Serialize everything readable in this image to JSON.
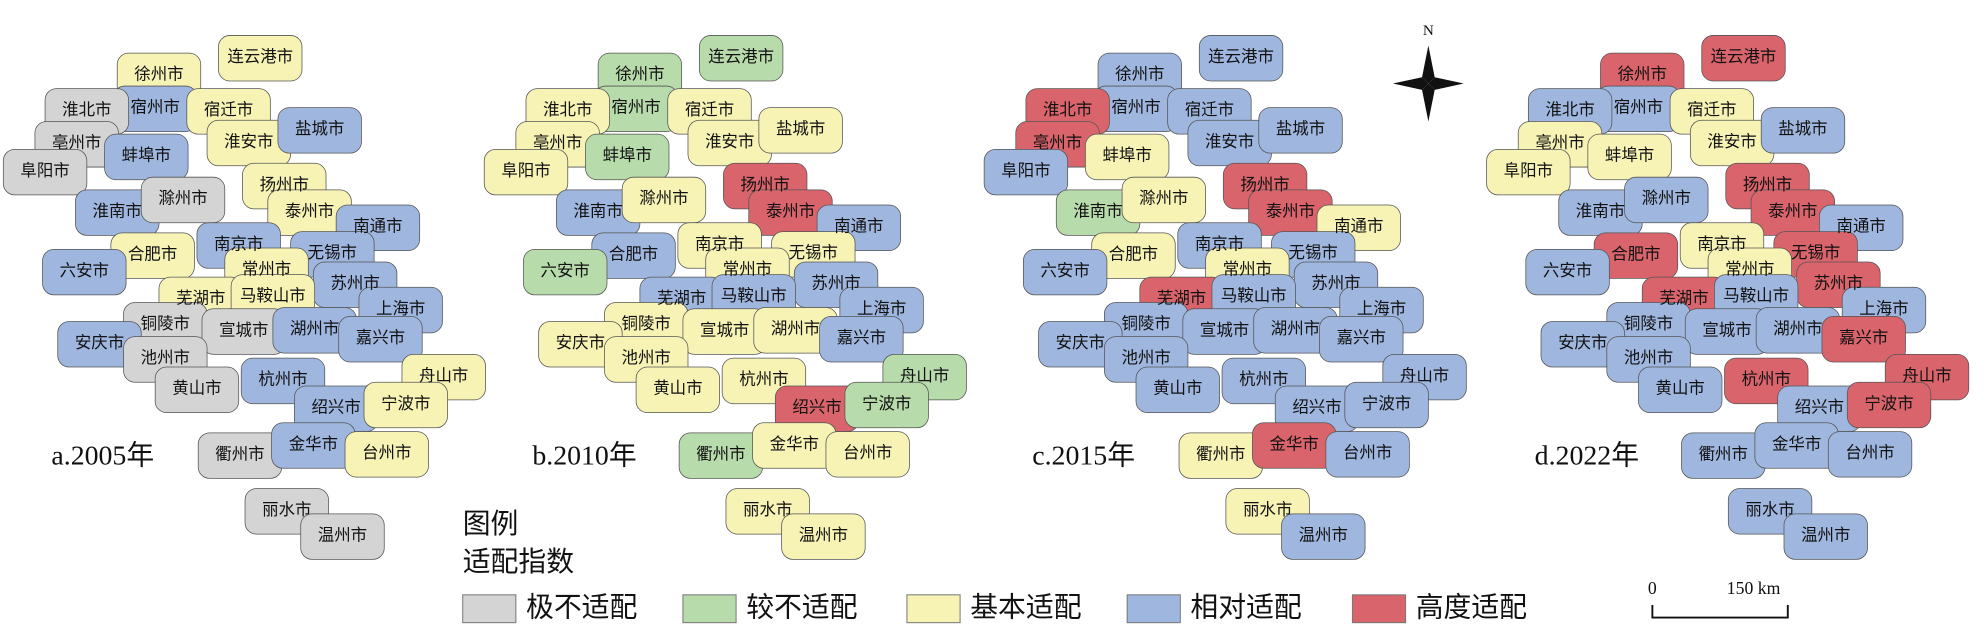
{
  "maps": [
    {
      "label": "a.2005年",
      "cities": [
        {
          "name": "连云港市",
          "category": "基本适配"
        },
        {
          "name": "徐州市",
          "category": "基本适配"
        },
        {
          "name": "宿州市",
          "category": "相对适配"
        },
        {
          "name": "宿迁市",
          "category": "基本适配"
        },
        {
          "name": "淮北市",
          "category": "极不适配"
        },
        {
          "name": "亳州市",
          "category": "极不适配"
        },
        {
          "name": "淮安市",
          "category": "基本适配"
        },
        {
          "name": "盐城市",
          "category": "相对适配"
        },
        {
          "name": "蚌埠市",
          "category": "相对适配"
        },
        {
          "name": "阜阳市",
          "category": "极不适配"
        },
        {
          "name": "扬州市",
          "category": "基本适配"
        },
        {
          "name": "淮南市",
          "category": "相对适配"
        },
        {
          "name": "滁州市",
          "category": "极不适配"
        },
        {
          "name": "泰州市",
          "category": "基本适配"
        },
        {
          "name": "南通市",
          "category": "相对适配"
        },
        {
          "name": "合肥市",
          "category": "基本适配"
        },
        {
          "name": "南京市",
          "category": "相对适配"
        },
        {
          "name": "无锡市",
          "category": "相对适配"
        },
        {
          "name": "常州市",
          "category": "基本适配"
        },
        {
          "name": "六安市",
          "category": "相对适配"
        },
        {
          "name": "苏州市",
          "category": "相对适配"
        },
        {
          "name": "芜湖市",
          "category": "基本适配"
        },
        {
          "name": "马鞍山市",
          "category": "基本适配"
        },
        {
          "name": "上海市",
          "category": "相对适配"
        },
        {
          "name": "铜陵市",
          "category": "极不适配"
        },
        {
          "name": "宣城市",
          "category": "极不适配"
        },
        {
          "name": "湖州市",
          "category": "相对适配"
        },
        {
          "name": "嘉兴市",
          "category": "相对适配"
        },
        {
          "name": "安庆市",
          "category": "相对适配"
        },
        {
          "name": "池州市",
          "category": "极不适配"
        },
        {
          "name": "黄山市",
          "category": "极不适配"
        },
        {
          "name": "杭州市",
          "category": "相对适配"
        },
        {
          "name": "舟山市",
          "category": "基本适配"
        },
        {
          "name": "绍兴市",
          "category": "相对适配"
        },
        {
          "name": "宁波市",
          "category": "基本适配"
        },
        {
          "name": "衢州市",
          "category": "极不适配"
        },
        {
          "name": "金华市",
          "category": "相对适配"
        },
        {
          "name": "台州市",
          "category": "基本适配"
        },
        {
          "name": "丽水市",
          "category": "极不适配"
        },
        {
          "name": "温州市",
          "category": "极不适配"
        }
      ]
    },
    {
      "label": "b.2010年",
      "cities": [
        {
          "name": "连云港市",
          "category": "较不适配"
        },
        {
          "name": "徐州市",
          "category": "较不适配"
        },
        {
          "name": "宿州市",
          "category": "较不适配"
        },
        {
          "name": "宿迁市",
          "category": "基本适配"
        },
        {
          "name": "淮北市",
          "category": "基本适配"
        },
        {
          "name": "亳州市",
          "category": "基本适配"
        },
        {
          "name": "淮安市",
          "category": "基本适配"
        },
        {
          "name": "盐城市",
          "category": "基本适配"
        },
        {
          "name": "蚌埠市",
          "category": "较不适配"
        },
        {
          "name": "阜阳市",
          "category": "基本适配"
        },
        {
          "name": "扬州市",
          "category": "高度适配"
        },
        {
          "name": "淮南市",
          "category": "相对适配"
        },
        {
          "name": "滁州市",
          "category": "基本适配"
        },
        {
          "name": "泰州市",
          "category": "高度适配"
        },
        {
          "name": "南通市",
          "category": "相对适配"
        },
        {
          "name": "合肥市",
          "category": "相对适配"
        },
        {
          "name": "南京市",
          "category": "基本适配"
        },
        {
          "name": "无锡市",
          "category": "基本适配"
        },
        {
          "name": "常州市",
          "category": "基本适配"
        },
        {
          "name": "六安市",
          "category": "较不适配"
        },
        {
          "name": "苏州市",
          "category": "相对适配"
        },
        {
          "name": "芜湖市",
          "category": "相对适配"
        },
        {
          "name": "马鞍山市",
          "category": "相对适配"
        },
        {
          "name": "上海市",
          "category": "相对适配"
        },
        {
          "name": "铜陵市",
          "category": "基本适配"
        },
        {
          "name": "宣城市",
          "category": "基本适配"
        },
        {
          "name": "湖州市",
          "category": "基本适配"
        },
        {
          "name": "嘉兴市",
          "category": "相对适配"
        },
        {
          "name": "安庆市",
          "category": "基本适配"
        },
        {
          "name": "池州市",
          "category": "基本适配"
        },
        {
          "name": "黄山市",
          "category": "基本适配"
        },
        {
          "name": "杭州市",
          "category": "基本适配"
        },
        {
          "name": "舟山市",
          "category": "较不适配"
        },
        {
          "name": "绍兴市",
          "category": "高度适配"
        },
        {
          "name": "宁波市",
          "category": "较不适配"
        },
        {
          "name": "衢州市",
          "category": "较不适配"
        },
        {
          "name": "金华市",
          "category": "基本适配"
        },
        {
          "name": "台州市",
          "category": "基本适配"
        },
        {
          "name": "丽水市",
          "category": "基本适配"
        },
        {
          "name": "温州市",
          "category": "基本适配"
        }
      ]
    },
    {
      "label": "c.2015年",
      "cities": [
        {
          "name": "连云港市",
          "category": "相对适配"
        },
        {
          "name": "徐州市",
          "category": "相对适配"
        },
        {
          "name": "宿州市",
          "category": "相对适配"
        },
        {
          "name": "宿迁市",
          "category": "相对适配"
        },
        {
          "name": "淮北市",
          "category": "高度适配"
        },
        {
          "name": "亳州市",
          "category": "高度适配"
        },
        {
          "name": "淮安市",
          "category": "相对适配"
        },
        {
          "name": "盐城市",
          "category": "相对适配"
        },
        {
          "name": "蚌埠市",
          "category": "基本适配"
        },
        {
          "name": "阜阳市",
          "category": "相对适配"
        },
        {
          "name": "扬州市",
          "category": "高度适配"
        },
        {
          "name": "淮南市",
          "category": "较不适配"
        },
        {
          "name": "滁州市",
          "category": "基本适配"
        },
        {
          "name": "泰州市",
          "category": "高度适配"
        },
        {
          "name": "南通市",
          "category": "基本适配"
        },
        {
          "name": "合肥市",
          "category": "基本适配"
        },
        {
          "name": "南京市",
          "category": "相对适配"
        },
        {
          "name": "无锡市",
          "category": "相对适配"
        },
        {
          "name": "常州市",
          "category": "基本适配"
        },
        {
          "name": "六安市",
          "category": "相对适配"
        },
        {
          "name": "苏州市",
          "category": "相对适配"
        },
        {
          "name": "芜湖市",
          "category": "高度适配"
        },
        {
          "name": "马鞍山市",
          "category": "相对适配"
        },
        {
          "name": "上海市",
          "category": "相对适配"
        },
        {
          "name": "铜陵市",
          "category": "相对适配"
        },
        {
          "name": "宣城市",
          "category": "相对适配"
        },
        {
          "name": "湖州市",
          "category": "相对适配"
        },
        {
          "name": "嘉兴市",
          "category": "相对适配"
        },
        {
          "name": "安庆市",
          "category": "相对适配"
        },
        {
          "name": "池州市",
          "category": "相对适配"
        },
        {
          "name": "黄山市",
          "category": "相对适配"
        },
        {
          "name": "杭州市",
          "category": "相对适配"
        },
        {
          "name": "舟山市",
          "category": "相对适配"
        },
        {
          "name": "绍兴市",
          "category": "相对适配"
        },
        {
          "name": "宁波市",
          "category": "相对适配"
        },
        {
          "name": "衢州市",
          "category": "基本适配"
        },
        {
          "name": "金华市",
          "category": "高度适配"
        },
        {
          "name": "台州市",
          "category": "相对适配"
        },
        {
          "name": "丽水市",
          "category": "基本适配"
        },
        {
          "name": "温州市",
          "category": "相对适配"
        }
      ]
    },
    {
      "label": "d.2022年",
      "cities": [
        {
          "name": "连云港市",
          "category": "高度适配"
        },
        {
          "name": "徐州市",
          "category": "高度适配"
        },
        {
          "name": "宿州市",
          "category": "相对适配"
        },
        {
          "name": "宿迁市",
          "category": "基本适配"
        },
        {
          "name": "淮北市",
          "category": "相对适配"
        },
        {
          "name": "亳州市",
          "category": "基本适配"
        },
        {
          "name": "淮安市",
          "category": "基本适配"
        },
        {
          "name": "盐城市",
          "category": "相对适配"
        },
        {
          "name": "蚌埠市",
          "category": "基本适配"
        },
        {
          "name": "阜阳市",
          "category": "基本适配"
        },
        {
          "name": "扬州市",
          "category": "高度适配"
        },
        {
          "name": "淮南市",
          "category": "相对适配"
        },
        {
          "name": "滁州市",
          "category": "相对适配"
        },
        {
          "name": "泰州市",
          "category": "高度适配"
        },
        {
          "name": "南通市",
          "category": "相对适配"
        },
        {
          "name": "合肥市",
          "category": "高度适配"
        },
        {
          "name": "南京市",
          "category": "基本适配"
        },
        {
          "name": "无锡市",
          "category": "高度适配"
        },
        {
          "name": "常州市",
          "category": "基本适配"
        },
        {
          "name": "六安市",
          "category": "相对适配"
        },
        {
          "name": "苏州市",
          "category": "高度适配"
        },
        {
          "name": "芜湖市",
          "category": "高度适配"
        },
        {
          "name": "马鞍山市",
          "category": "相对适配"
        },
        {
          "name": "上海市",
          "category": "相对适配"
        },
        {
          "name": "铜陵市",
          "category": "相对适配"
        },
        {
          "name": "宣城市",
          "category": "相对适配"
        },
        {
          "name": "湖州市",
          "category": "相对适配"
        },
        {
          "name": "嘉兴市",
          "category": "高度适配"
        },
        {
          "name": "安庆市",
          "category": "相对适配"
        },
        {
          "name": "池州市",
          "category": "相对适配"
        },
        {
          "name": "黄山市",
          "category": "相对适配"
        },
        {
          "name": "杭州市",
          "category": "高度适配"
        },
        {
          "name": "舟山市",
          "category": "高度适配"
        },
        {
          "name": "绍兴市",
          "category": "相对适配"
        },
        {
          "name": "宁波市",
          "category": "高度适配"
        },
        {
          "name": "衢州市",
          "category": "相对适配"
        },
        {
          "name": "金华市",
          "category": "相对适配"
        },
        {
          "name": "台州市",
          "category": "相对适配"
        },
        {
          "name": "丽水市",
          "category": "相对适配"
        },
        {
          "name": "温州市",
          "category": "相对适配"
        }
      ]
    }
  ],
  "legend": {
    "title": "图例",
    "subtitle": "适配指数",
    "items": [
      {
        "name": "极不适配",
        "color": "#d4d4d4"
      },
      {
        "name": "较不适配",
        "color": "#b8dbab"
      },
      {
        "name": "基本适配",
        "color": "#f6f3b4"
      },
      {
        "name": "相对适配",
        "color": "#9fb6df"
      },
      {
        "name": "高度适配",
        "color": "#d9646b"
      }
    ]
  },
  "compass": "N",
  "scale_bar": {
    "start": "0",
    "end": "150 km"
  }
}
